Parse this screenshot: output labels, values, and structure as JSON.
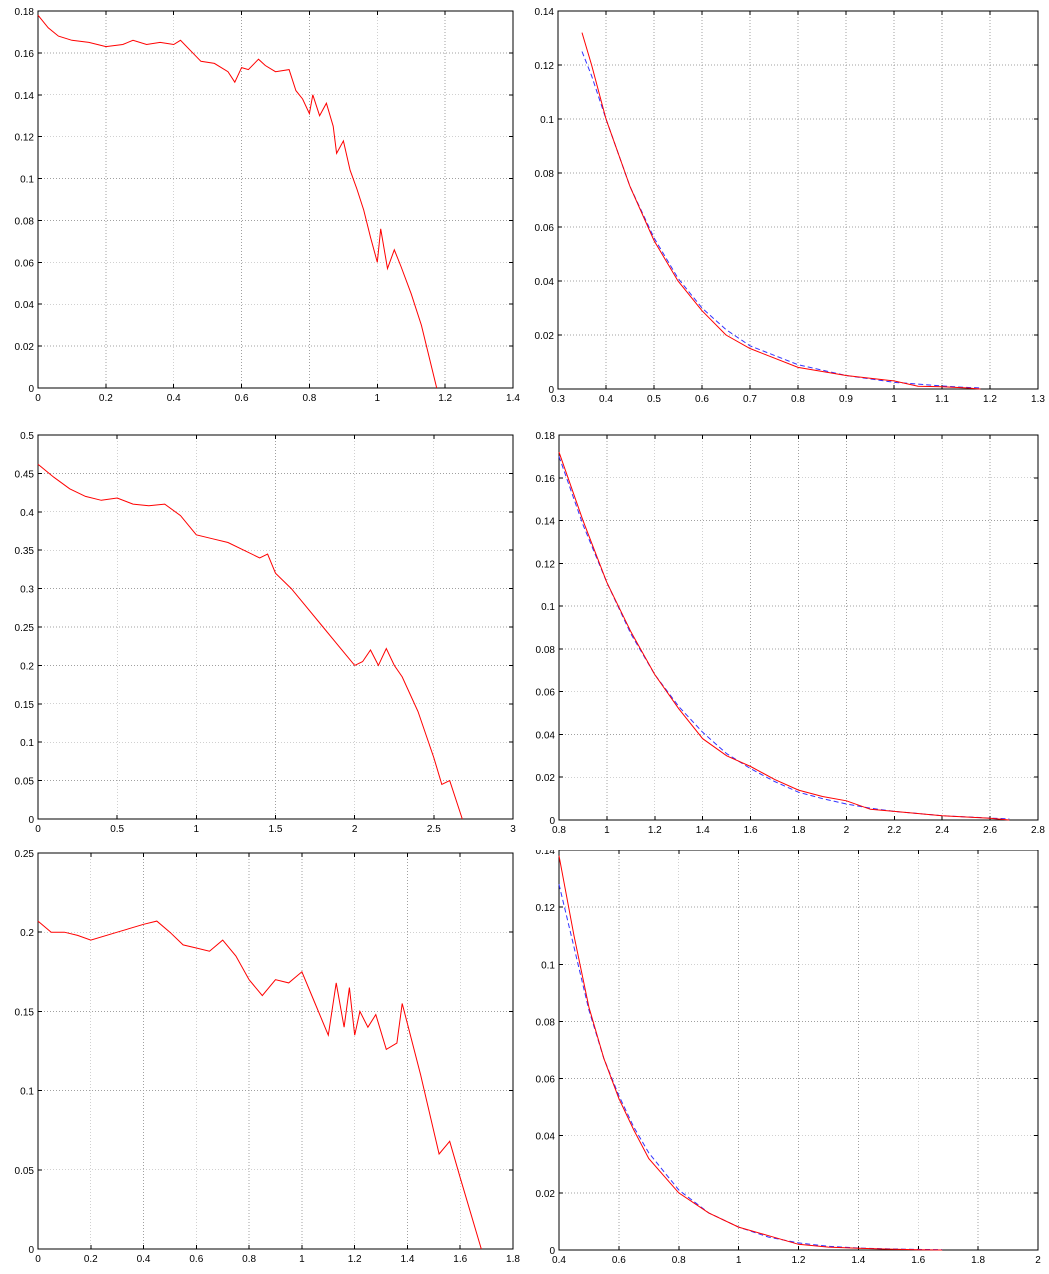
{
  "chart_data": [
    {
      "type": "line",
      "title": "",
      "xlabel": "",
      "ylabel": "",
      "xlim": [
        0,
        1.4
      ],
      "ylim": [
        0,
        0.18
      ],
      "grid": true,
      "xticks": [
        "0",
        "0.2",
        "0.4",
        "0.6",
        "0.8",
        "1",
        "1.2",
        "1.4"
      ],
      "yticks": [
        "0",
        "0.02",
        "0.04",
        "0.06",
        "0.08",
        "0.1",
        "0.12",
        "0.14",
        "0.16",
        "0.18"
      ],
      "series": [
        {
          "color": "#ff0000",
          "style": "solid",
          "x": [
            0,
            0.03,
            0.06,
            0.1,
            0.15,
            0.2,
            0.25,
            0.28,
            0.32,
            0.36,
            0.4,
            0.42,
            0.45,
            0.48,
            0.52,
            0.56,
            0.58,
            0.6,
            0.62,
            0.65,
            0.67,
            0.7,
            0.74,
            0.76,
            0.78,
            0.8,
            0.81,
            0.83,
            0.85,
            0.87,
            0.88,
            0.9,
            0.92,
            0.94,
            0.96,
            0.98,
            1.0,
            1.01,
            1.03,
            1.05,
            1.07,
            1.1,
            1.13,
            1.16,
            1.175
          ],
          "y": [
            0.178,
            0.172,
            0.168,
            0.166,
            0.165,
            0.163,
            0.164,
            0.166,
            0.164,
            0.165,
            0.164,
            0.166,
            0.161,
            0.156,
            0.155,
            0.151,
            0.146,
            0.153,
            0.152,
            0.157,
            0.154,
            0.151,
            0.152,
            0.142,
            0.138,
            0.131,
            0.14,
            0.13,
            0.136,
            0.125,
            0.112,
            0.118,
            0.104,
            0.095,
            0.085,
            0.072,
            0.06,
            0.076,
            0.057,
            0.066,
            0.058,
            0.045,
            0.03,
            0.01,
            0.0
          ]
        }
      ]
    },
    {
      "type": "line",
      "title": "",
      "xlabel": "",
      "ylabel": "",
      "xlim": [
        0.3,
        1.3
      ],
      "ylim": [
        0,
        0.14
      ],
      "grid": true,
      "xticks": [
        "0.3",
        "0.4",
        "0.5",
        "0.6",
        "0.7",
        "0.8",
        "0.9",
        "1",
        "1.1",
        "1.2",
        "1.3"
      ],
      "yticks": [
        "0",
        "0.02",
        "0.04",
        "0.06",
        "0.08",
        "0.1",
        "0.12",
        "0.14"
      ],
      "series": [
        {
          "color": "#ff0000",
          "style": "solid",
          "x": [
            0.35,
            0.37,
            0.4,
            0.45,
            0.5,
            0.55,
            0.6,
            0.65,
            0.7,
            0.8,
            0.9,
            1.0,
            1.05,
            1.1,
            1.15,
            1.18
          ],
          "y": [
            0.132,
            0.12,
            0.1,
            0.075,
            0.055,
            0.04,
            0.029,
            0.02,
            0.015,
            0.008,
            0.005,
            0.003,
            0.001,
            0.0008,
            0.0004,
            0.0
          ]
        },
        {
          "color": "#3333ff",
          "style": "dashed",
          "x": [
            0.35,
            0.37,
            0.4,
            0.45,
            0.5,
            0.55,
            0.6,
            0.65,
            0.7,
            0.8,
            0.9,
            1.0,
            1.05,
            1.1,
            1.15,
            1.18
          ],
          "y": [
            0.125,
            0.116,
            0.1,
            0.075,
            0.056,
            0.041,
            0.03,
            0.022,
            0.016,
            0.009,
            0.005,
            0.0025,
            0.0018,
            0.0011,
            0.0006,
            0.0004
          ]
        }
      ]
    },
    {
      "type": "line",
      "title": "",
      "xlabel": "",
      "ylabel": "",
      "xlim": [
        0,
        3
      ],
      "ylim": [
        0,
        0.5
      ],
      "grid": true,
      "xticks": [
        "0",
        "0.5",
        "1",
        "1.5",
        "2",
        "2.5",
        "3"
      ],
      "yticks": [
        "0",
        "0.05",
        "0.1",
        "0.15",
        "0.2",
        "0.25",
        "0.3",
        "0.35",
        "0.4",
        "0.45",
        "0.5"
      ],
      "series": [
        {
          "color": "#ff0000",
          "style": "solid",
          "x": [
            0,
            0.1,
            0.2,
            0.3,
            0.4,
            0.5,
            0.6,
            0.7,
            0.8,
            0.9,
            1.0,
            1.1,
            1.2,
            1.3,
            1.4,
            1.45,
            1.5,
            1.6,
            1.7,
            1.8,
            1.9,
            2.0,
            2.05,
            2.1,
            2.15,
            2.2,
            2.25,
            2.3,
            2.4,
            2.5,
            2.55,
            2.6,
            2.68
          ],
          "y": [
            0.462,
            0.445,
            0.43,
            0.42,
            0.415,
            0.418,
            0.41,
            0.408,
            0.41,
            0.395,
            0.37,
            0.365,
            0.36,
            0.35,
            0.34,
            0.345,
            0.32,
            0.3,
            0.275,
            0.25,
            0.225,
            0.2,
            0.205,
            0.22,
            0.2,
            0.222,
            0.2,
            0.185,
            0.14,
            0.08,
            0.045,
            0.05,
            0.0
          ]
        }
      ]
    },
    {
      "type": "line",
      "title": "",
      "xlabel": "",
      "ylabel": "",
      "xlim": [
        0.8,
        2.8
      ],
      "ylim": [
        0,
        0.18
      ],
      "grid": true,
      "xticks": [
        "0.8",
        "1",
        "1.2",
        "1.4",
        "1.6",
        "1.8",
        "2",
        "2.2",
        "2.4",
        "2.6",
        "2.8"
      ],
      "yticks": [
        "0",
        "0.02",
        "0.04",
        "0.06",
        "0.08",
        "0.1",
        "0.12",
        "0.14",
        "0.16",
        "0.18"
      ],
      "series": [
        {
          "color": "#ff0000",
          "style": "solid",
          "x": [
            0.8,
            0.9,
            1.0,
            1.1,
            1.2,
            1.3,
            1.4,
            1.5,
            1.6,
            1.7,
            1.8,
            1.9,
            2.0,
            2.1,
            2.2,
            2.4,
            2.6,
            2.68
          ],
          "y": [
            0.172,
            0.14,
            0.111,
            0.088,
            0.068,
            0.052,
            0.038,
            0.03,
            0.025,
            0.019,
            0.014,
            0.011,
            0.009,
            0.005,
            0.004,
            0.002,
            0.0008,
            0.0
          ]
        },
        {
          "color": "#3333ff",
          "style": "dashed",
          "x": [
            0.8,
            0.9,
            1.0,
            1.1,
            1.2,
            1.3,
            1.4,
            1.5,
            1.6,
            1.7,
            1.8,
            1.9,
            2.0,
            2.1,
            2.2,
            2.4,
            2.6,
            2.68
          ],
          "y": [
            0.17,
            0.138,
            0.111,
            0.087,
            0.068,
            0.053,
            0.041,
            0.031,
            0.024,
            0.018,
            0.013,
            0.01,
            0.0075,
            0.0055,
            0.004,
            0.002,
            0.0009,
            0.0005
          ]
        }
      ]
    },
    {
      "type": "line",
      "title": "",
      "xlabel": "",
      "ylabel": "",
      "xlim": [
        0,
        1.8
      ],
      "ylim": [
        0,
        0.25
      ],
      "grid": true,
      "xticks": [
        "0",
        "0.2",
        "0.4",
        "0.6",
        "0.8",
        "1",
        "1.2",
        "1.4",
        "1.6",
        "1.8"
      ],
      "yticks": [
        "0",
        "0.05",
        "0.1",
        "0.15",
        "0.2",
        "0.25"
      ],
      "series": [
        {
          "color": "#ff0000",
          "style": "solid",
          "x": [
            0,
            0.05,
            0.1,
            0.15,
            0.2,
            0.3,
            0.4,
            0.45,
            0.5,
            0.55,
            0.6,
            0.65,
            0.7,
            0.75,
            0.8,
            0.85,
            0.9,
            0.95,
            1.0,
            1.05,
            1.1,
            1.13,
            1.16,
            1.18,
            1.2,
            1.22,
            1.25,
            1.28,
            1.32,
            1.36,
            1.38,
            1.45,
            1.52,
            1.56,
            1.6,
            1.68
          ],
          "y": [
            0.207,
            0.2,
            0.2,
            0.198,
            0.195,
            0.2,
            0.205,
            0.207,
            0.2,
            0.192,
            0.19,
            0.188,
            0.195,
            0.185,
            0.17,
            0.16,
            0.17,
            0.168,
            0.175,
            0.155,
            0.135,
            0.168,
            0.14,
            0.165,
            0.135,
            0.15,
            0.14,
            0.148,
            0.126,
            0.13,
            0.155,
            0.11,
            0.06,
            0.068,
            0.045,
            0.0
          ]
        }
      ]
    },
    {
      "type": "line",
      "title": "",
      "xlabel": "",
      "ylabel": "",
      "xlim": [
        0.4,
        2
      ],
      "ylim": [
        0,
        0.14
      ],
      "grid": true,
      "xticks": [
        "0.4",
        "0.6",
        "0.8",
        "1",
        "1.2",
        "1.4",
        "1.6",
        "1.8",
        "2"
      ],
      "yticks": [
        "0",
        "0.02",
        "0.04",
        "0.06",
        "0.08",
        "0.1",
        "0.12",
        "0.14"
      ],
      "series": [
        {
          "color": "#ff0000",
          "style": "solid",
          "x": [
            0.4,
            0.45,
            0.5,
            0.55,
            0.6,
            0.65,
            0.7,
            0.8,
            0.9,
            1.0,
            1.1,
            1.2,
            1.3,
            1.4,
            1.5,
            1.6,
            1.68
          ],
          "y": [
            0.138,
            0.11,
            0.085,
            0.067,
            0.053,
            0.042,
            0.032,
            0.02,
            0.013,
            0.008,
            0.005,
            0.002,
            0.001,
            0.0006,
            0.0003,
            0.0001,
            0.0
          ]
        },
        {
          "color": "#3333ff",
          "style": "dashed",
          "x": [
            0.4,
            0.45,
            0.5,
            0.55,
            0.6,
            0.65,
            0.7,
            0.8,
            0.9,
            1.0,
            1.1,
            1.2,
            1.3,
            1.4,
            1.5,
            1.6,
            1.68
          ],
          "y": [
            0.128,
            0.106,
            0.084,
            0.067,
            0.054,
            0.043,
            0.034,
            0.021,
            0.013,
            0.008,
            0.0045,
            0.0025,
            0.0013,
            0.0007,
            0.0004,
            0.0002,
            0.0001
          ]
        }
      ]
    }
  ]
}
